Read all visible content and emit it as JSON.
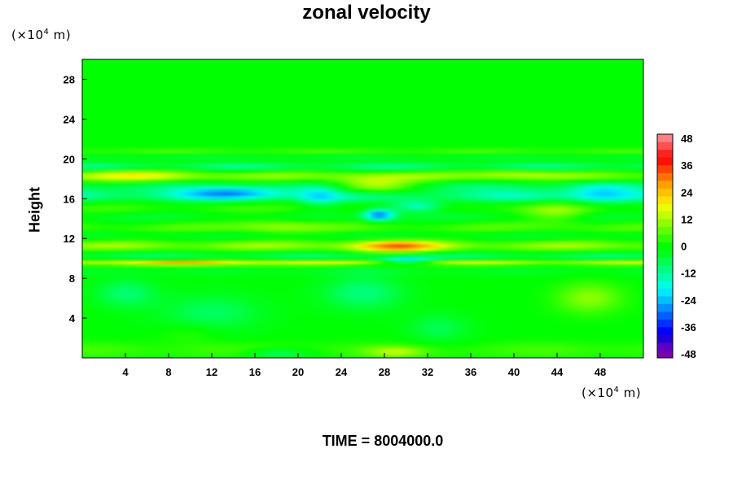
{
  "chart_data": {
    "type": "heatmap",
    "title": "zonal velocity",
    "ylabel": "Height",
    "xlabel": "",
    "unit_base": "(×10",
    "unit_exp": "4",
    "unit_tail": " m)",
    "footer": "TIME = 8004000.0",
    "xlim": [
      0,
      52
    ],
    "ylim": [
      0,
      30
    ],
    "x_ticks": [
      4,
      8,
      12,
      16,
      20,
      24,
      28,
      32,
      36,
      40,
      44,
      48
    ],
    "y_ticks": [
      4,
      8,
      12,
      16,
      20,
      24,
      28
    ],
    "colorbar": {
      "min": -48,
      "max": 48,
      "ticks": [
        48,
        36,
        24,
        12,
        0,
        -12,
        -24,
        -36,
        -48
      ],
      "colors": [
        "#7a00b4",
        "#5a00c8",
        "#2000dc",
        "#0000ff",
        "#0030ff",
        "#0060ff",
        "#0090ff",
        "#00c0ff",
        "#00e8ff",
        "#00ffe0",
        "#00ffb0",
        "#00ff80",
        "#00ff50",
        "#00ff20",
        "#00ff00",
        "#30ff00",
        "#60ff00",
        "#90ff00",
        "#c0ff00",
        "#e8ff00",
        "#ffe000",
        "#ffc000",
        "#ffa000",
        "#ff7000",
        "#ff4000",
        "#ff1000",
        "#ff2020",
        "#ff5050",
        "#ff8080"
      ]
    },
    "bands": [
      {
        "y": 20.8,
        "w": 0.25,
        "v": 6
      },
      {
        "y": 20.2,
        "w": 0.3,
        "v": -5
      },
      {
        "y": 19.2,
        "w": 0.45,
        "v": -13
      },
      {
        "y": 18.3,
        "w": 0.6,
        "v": 11
      },
      {
        "y": 17.3,
        "w": 0.6,
        "v": -8
      },
      {
        "y": 16.3,
        "w": 0.7,
        "v": -15
      },
      {
        "y": 15.0,
        "w": 0.7,
        "v": 6
      },
      {
        "y": 14.0,
        "w": 0.9,
        "v": -7
      },
      {
        "y": 13.2,
        "w": 0.7,
        "v": 9
      },
      {
        "y": 12.2,
        "w": 0.6,
        "v": -6
      },
      {
        "y": 11.3,
        "w": 0.6,
        "v": 13
      },
      {
        "y": 10.6,
        "w": 0.35,
        "v": -5
      },
      {
        "y": 10.1,
        "w": 0.25,
        "v": -13
      },
      {
        "y": 9.6,
        "w": 0.3,
        "v": 17
      },
      {
        "y": 8.8,
        "w": 0.6,
        "v": -4
      },
      {
        "y": 0.8,
        "w": 0.8,
        "v": 5
      }
    ],
    "blobs": [
      {
        "x": 27,
        "y": 17.3,
        "rx": 4,
        "ry": 0.9,
        "v": 18
      },
      {
        "x": 27.5,
        "y": 14.4,
        "rx": 1.5,
        "ry": 0.6,
        "v": -28
      },
      {
        "x": 31,
        "y": 15.2,
        "rx": 2.5,
        "ry": 0.6,
        "v": -18
      },
      {
        "x": 29,
        "y": 11.2,
        "rx": 4,
        "ry": 0.6,
        "v": 22
      },
      {
        "x": 30,
        "y": 9.8,
        "rx": 2.5,
        "ry": 0.3,
        "v": -22
      },
      {
        "x": 10,
        "y": 9.6,
        "rx": 10,
        "ry": 0.35,
        "v": 10
      },
      {
        "x": 14,
        "y": 16.6,
        "rx": 5,
        "ry": 0.6,
        "v": -16
      },
      {
        "x": 5,
        "y": 18.3,
        "rx": 6,
        "ry": 0.6,
        "v": 10
      },
      {
        "x": 18,
        "y": 13.3,
        "rx": 4,
        "ry": 0.8,
        "v": 8
      },
      {
        "x": 22,
        "y": 16.2,
        "rx": 2,
        "ry": 1.0,
        "v": -12
      },
      {
        "x": 48,
        "y": 16.5,
        "rx": 3,
        "ry": 1.0,
        "v": -14
      },
      {
        "x": 44,
        "y": 14.5,
        "rx": 3,
        "ry": 1.0,
        "v": 9
      },
      {
        "x": 40,
        "y": 18.5,
        "rx": 4,
        "ry": 0.5,
        "v": 8
      },
      {
        "x": 4,
        "y": 6.5,
        "rx": 3,
        "ry": 1.5,
        "v": -9
      },
      {
        "x": 12,
        "y": 4.5,
        "rx": 5,
        "ry": 2.0,
        "v": -8
      },
      {
        "x": 26,
        "y": 6.5,
        "rx": 4,
        "ry": 1.8,
        "v": -10
      },
      {
        "x": 33,
        "y": 3.0,
        "rx": 3,
        "ry": 1.5,
        "v": -7
      },
      {
        "x": 47,
        "y": 6.0,
        "rx": 3,
        "ry": 1.5,
        "v": 10
      },
      {
        "x": 18,
        "y": 0.5,
        "rx": 3,
        "ry": 0.5,
        "v": -10
      },
      {
        "x": 29,
        "y": 0.6,
        "rx": 2.5,
        "ry": 0.5,
        "v": 10
      },
      {
        "x": 10,
        "y": 2.5,
        "rx": 3,
        "ry": 1.0,
        "v": 4
      }
    ]
  }
}
